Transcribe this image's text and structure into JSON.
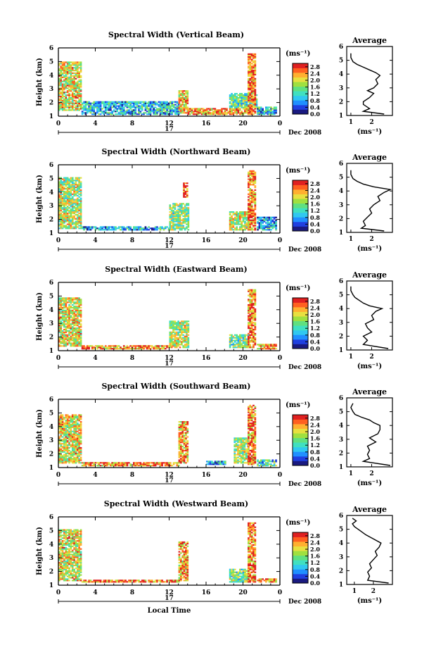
{
  "chart_data": [
    {
      "type": "heatmap",
      "title": "Spectral Width (Vertical Beam)",
      "ylabel": "Height (km)",
      "x_ticks": [
        "0",
        "4",
        "8",
        "12",
        "16",
        "20",
        "0"
      ],
      "y_ticks": [
        "1",
        "2",
        "3",
        "4",
        "5",
        "6"
      ],
      "date_day": "17",
      "date_label": "Dec 2008",
      "colorbar_unit": "(ms⁻¹)",
      "colorbar_ticks": [
        "0.0",
        "0.4",
        "0.8",
        "1.2",
        "1.6",
        "2.0",
        "2.4",
        "2.8"
      ],
      "colorbar_range": [
        0.0,
        3.0
      ],
      "xlim": [
        0,
        24
      ],
      "ylim": [
        1,
        6
      ],
      "echo_regions": [
        {
          "t0": 0.0,
          "t1": 2.5,
          "h0": 1.4,
          "h1": 4.9,
          "level": 2.0
        },
        {
          "t0": 2.5,
          "t1": 13.0,
          "h0": 1.1,
          "h1": 2.1,
          "level": 1.0
        },
        {
          "t0": 13.0,
          "t1": 14.0,
          "h0": 1.2,
          "h1": 2.9,
          "level": 2.2
        },
        {
          "t0": 14.0,
          "t1": 21.0,
          "h0": 1.1,
          "h1": 1.6,
          "level": 2.4
        },
        {
          "t0": 18.5,
          "t1": 21.5,
          "h0": 1.6,
          "h1": 2.7,
          "level": 1.4
        },
        {
          "t0": 20.5,
          "t1": 21.4,
          "h0": 1.1,
          "h1": 5.5,
          "level": 2.6
        },
        {
          "t0": 21.5,
          "t1": 23.5,
          "h0": 1.1,
          "h1": 1.7,
          "level": 1.0
        }
      ],
      "average": {
        "title": "Average",
        "xlabel": "(ms⁻¹)",
        "x_ticks": [
          "1",
          "2"
        ],
        "xlim": [
          0.8,
          3.0
        ],
        "y_ticks": [
          "1",
          "2",
          "3",
          "4",
          "5",
          "6"
        ],
        "ylim": [
          1,
          6
        ],
        "height": [
          1.1,
          1.3,
          1.5,
          1.8,
          2.0,
          2.3,
          2.6,
          2.8,
          3.0,
          3.3,
          3.6,
          3.9,
          4.1,
          4.3,
          4.5,
          4.7,
          4.9,
          5.2,
          5.5
        ],
        "width": [
          2.6,
          1.6,
          1.9,
          1.6,
          1.6,
          1.9,
          2.1,
          1.8,
          2.1,
          2.3,
          2.2,
          2.4,
          2.2,
          1.9,
          1.6,
          1.3,
          1.1,
          1.0,
          1.0
        ]
      }
    },
    {
      "type": "heatmap",
      "title": "Spectral Width (Northward Beam)",
      "ylabel": "Height (km)",
      "x_ticks": [
        "0",
        "4",
        "8",
        "12",
        "16",
        "20",
        "0"
      ],
      "y_ticks": [
        "1",
        "2",
        "3",
        "4",
        "5",
        "6"
      ],
      "date_day": "17",
      "date_label": "Dec 2008",
      "colorbar_unit": "(ms⁻¹)",
      "colorbar_ticks": [
        "0.0",
        "0.4",
        "0.8",
        "1.2",
        "1.6",
        "2.0",
        "2.4",
        "2.8"
      ],
      "colorbar_range": [
        0.0,
        3.0
      ],
      "xlim": [
        0,
        24
      ],
      "ylim": [
        1,
        6
      ],
      "echo_regions": [
        {
          "t0": 0.0,
          "t1": 2.5,
          "h0": 1.3,
          "h1": 5.0,
          "level": 1.8
        },
        {
          "t0": 2.5,
          "t1": 12.0,
          "h0": 1.2,
          "h1": 1.5,
          "level": 0.9
        },
        {
          "t0": 12.0,
          "t1": 14.0,
          "h0": 1.2,
          "h1": 3.2,
          "level": 1.6
        },
        {
          "t0": 13.5,
          "t1": 14.0,
          "h0": 3.6,
          "h1": 4.6,
          "level": 2.8
        },
        {
          "t0": 18.5,
          "t1": 20.5,
          "h0": 1.2,
          "h1": 2.6,
          "level": 1.8
        },
        {
          "t0": 20.5,
          "t1": 21.4,
          "h0": 1.2,
          "h1": 5.5,
          "level": 2.5
        },
        {
          "t0": 21.5,
          "t1": 23.5,
          "h0": 1.2,
          "h1": 2.2,
          "level": 0.9
        }
      ],
      "average": {
        "title": "Average",
        "xlabel": "(ms⁻¹)",
        "x_ticks": [
          "1",
          "2"
        ],
        "xlim": [
          0.8,
          3.0
        ],
        "y_ticks": [
          "1",
          "2",
          "3",
          "4",
          "5",
          "6"
        ],
        "ylim": [
          1,
          6
        ],
        "height": [
          1.1,
          1.3,
          1.5,
          1.8,
          2.1,
          2.4,
          2.7,
          3.0,
          3.3,
          3.6,
          3.9,
          4.1,
          4.3,
          4.5,
          4.7,
          4.9,
          5.2,
          5.5
        ],
        "width": [
          2.6,
          1.5,
          1.7,
          1.6,
          1.8,
          2.0,
          1.9,
          2.1,
          2.4,
          2.3,
          2.6,
          2.9,
          2.1,
          1.6,
          1.3,
          1.1,
          1.0,
          1.0
        ]
      }
    },
    {
      "type": "heatmap",
      "title": "Spectral Width (Eastward Beam)",
      "ylabel": "Height (km)",
      "x_ticks": [
        "0",
        "4",
        "8",
        "12",
        "16",
        "20",
        "0"
      ],
      "y_ticks": [
        "1",
        "2",
        "3",
        "4",
        "5",
        "6"
      ],
      "date_day": "17",
      "date_label": "Dec 2008",
      "colorbar_unit": "(ms⁻¹)",
      "colorbar_ticks": [
        "0.0",
        "0.4",
        "0.8",
        "1.2",
        "1.6",
        "2.0",
        "2.4",
        "2.8"
      ],
      "colorbar_range": [
        0.0,
        3.0
      ],
      "xlim": [
        0,
        24
      ],
      "ylim": [
        1,
        6
      ],
      "echo_regions": [
        {
          "t0": 0.0,
          "t1": 2.5,
          "h0": 1.3,
          "h1": 4.8,
          "level": 2.0
        },
        {
          "t0": 2.5,
          "t1": 12.0,
          "h0": 1.1,
          "h1": 1.4,
          "level": 2.4
        },
        {
          "t0": 12.0,
          "t1": 14.0,
          "h0": 1.2,
          "h1": 3.2,
          "level": 1.8
        },
        {
          "t0": 18.5,
          "t1": 20.5,
          "h0": 1.2,
          "h1": 2.2,
          "level": 1.5
        },
        {
          "t0": 20.5,
          "t1": 21.4,
          "h0": 1.2,
          "h1": 5.4,
          "level": 2.5
        },
        {
          "t0": 21.5,
          "t1": 23.5,
          "h0": 1.1,
          "h1": 1.5,
          "level": 2.2
        }
      ],
      "average": {
        "title": "Average",
        "xlabel": "(ms⁻¹)",
        "x_ticks": [
          "1",
          "2"
        ],
        "xlim": [
          0.8,
          3.0
        ],
        "y_ticks": [
          "1",
          "2",
          "3",
          "4",
          "5",
          "6"
        ],
        "ylim": [
          1,
          6
        ],
        "height": [
          1.1,
          1.4,
          1.7,
          2.0,
          2.3,
          2.6,
          2.9,
          3.2,
          3.5,
          3.8,
          4.0,
          4.2,
          4.4,
          4.6,
          4.8,
          5.0,
          5.3,
          5.6
        ],
        "width": [
          2.8,
          1.6,
          1.8,
          1.6,
          2.0,
          1.8,
          1.7,
          2.1,
          2.0,
          2.2,
          2.5,
          1.9,
          1.6,
          1.4,
          1.2,
          1.1,
          1.0,
          1.0
        ]
      }
    },
    {
      "type": "heatmap",
      "title": "Spectral Width (Southward Beam)",
      "ylabel": "Height (km)",
      "x_ticks": [
        "0",
        "4",
        "8",
        "12",
        "16",
        "20",
        "0"
      ],
      "y_ticks": [
        "1",
        "2",
        "3",
        "4",
        "5",
        "6"
      ],
      "date_day": "17",
      "date_label": "Dec 2008",
      "colorbar_unit": "(ms⁻¹)",
      "colorbar_ticks": [
        "0.0",
        "0.4",
        "0.8",
        "1.2",
        "1.6",
        "2.0",
        "2.4",
        "2.8"
      ],
      "colorbar_range": [
        0.0,
        3.0
      ],
      "xlim": [
        0,
        24
      ],
      "ylim": [
        1,
        6
      ],
      "echo_regions": [
        {
          "t0": 0.0,
          "t1": 2.5,
          "h0": 1.3,
          "h1": 4.8,
          "level": 2.0
        },
        {
          "t0": 2.5,
          "t1": 13.0,
          "h0": 1.1,
          "h1": 1.4,
          "level": 2.4
        },
        {
          "t0": 13.0,
          "t1": 14.0,
          "h0": 1.3,
          "h1": 4.4,
          "level": 2.3
        },
        {
          "t0": 16.0,
          "t1": 18.0,
          "h0": 1.2,
          "h1": 1.5,
          "level": 0.9
        },
        {
          "t0": 19.0,
          "t1": 20.5,
          "h0": 1.3,
          "h1": 3.2,
          "level": 1.7
        },
        {
          "t0": 20.5,
          "t1": 21.4,
          "h0": 1.2,
          "h1": 5.5,
          "level": 2.5
        },
        {
          "t0": 21.5,
          "t1": 23.5,
          "h0": 1.1,
          "h1": 1.6,
          "level": 1.2
        }
      ],
      "average": {
        "title": "Average",
        "xlabel": "(ms⁻¹)",
        "x_ticks": [
          "1",
          "2"
        ],
        "xlim": [
          0.8,
          3.0
        ],
        "y_ticks": [
          "1",
          "2",
          "3",
          "4",
          "5",
          "6"
        ],
        "ylim": [
          1,
          6
        ],
        "height": [
          1.1,
          1.4,
          1.6,
          1.9,
          2.2,
          2.5,
          2.8,
          3.1,
          3.4,
          3.7,
          4.0,
          4.2,
          4.4,
          4.6,
          4.8,
          5.0,
          5.3,
          5.6
        ],
        "width": [
          2.9,
          1.6,
          1.9,
          1.8,
          1.9,
          1.8,
          2.2,
          1.9,
          2.3,
          2.4,
          2.4,
          2.1,
          1.9,
          1.5,
          1.2,
          1.1,
          1.0,
          1.1
        ]
      }
    },
    {
      "type": "heatmap",
      "title": "Spectral Width (Westward Beam)",
      "ylabel": "Height (km)",
      "x_ticks": [
        "0",
        "4",
        "8",
        "12",
        "16",
        "20",
        "0"
      ],
      "y_ticks": [
        "1",
        "2",
        "3",
        "4",
        "5",
        "6"
      ],
      "date_day": "17",
      "date_label": "Dec 2008",
      "xlabel": "Local Time",
      "colorbar_unit": "(ms⁻¹)",
      "colorbar_ticks": [
        "0.0",
        "0.4",
        "0.8",
        "1.2",
        "1.6",
        "2.0",
        "2.4",
        "2.8"
      ],
      "colorbar_range": [
        0.0,
        3.0
      ],
      "xlim": [
        0,
        24
      ],
      "ylim": [
        1,
        6
      ],
      "echo_regions": [
        {
          "t0": 0.0,
          "t1": 2.5,
          "h0": 1.3,
          "h1": 5.0,
          "level": 2.0
        },
        {
          "t0": 2.5,
          "t1": 13.0,
          "h0": 1.2,
          "h1": 1.4,
          "level": 2.5
        },
        {
          "t0": 13.0,
          "t1": 14.0,
          "h0": 1.3,
          "h1": 4.2,
          "level": 2.3
        },
        {
          "t0": 18.5,
          "t1": 20.5,
          "h0": 1.2,
          "h1": 2.2,
          "level": 1.5
        },
        {
          "t0": 20.5,
          "t1": 21.4,
          "h0": 1.2,
          "h1": 5.5,
          "level": 2.5
        },
        {
          "t0": 21.5,
          "t1": 23.5,
          "h0": 1.2,
          "h1": 1.5,
          "level": 2.4
        }
      ],
      "average": {
        "title": "Average",
        "xlabel": "(ms⁻¹)",
        "x_ticks": [
          "1",
          "2"
        ],
        "xlim": [
          0.6,
          3.0
        ],
        "y_ticks": [
          "1",
          "2",
          "3",
          "4",
          "5",
          "6"
        ],
        "ylim": [
          1,
          6
        ],
        "height": [
          1.1,
          1.3,
          1.6,
          1.9,
          2.2,
          2.5,
          2.8,
          3.1,
          3.4,
          3.7,
          4.0,
          4.3,
          4.6,
          4.9,
          5.2,
          5.4,
          5.6,
          5.8
        ],
        "width": [
          2.8,
          1.7,
          1.8,
          1.7,
          1.9,
          1.8,
          2.0,
          2.2,
          2.1,
          2.3,
          2.4,
          2.0,
          1.6,
          1.3,
          1.0,
          0.9,
          1.1,
          0.9
        ]
      }
    }
  ],
  "colors": {
    "colorscale": [
      "#1a1a80",
      "#2040e0",
      "#2090ff",
      "#30c8f0",
      "#40e0c0",
      "#60e080",
      "#a0e040",
      "#e8e040",
      "#ffb030",
      "#ff6020",
      "#e02020"
    ],
    "axis": "#000000",
    "background": "#ffffff"
  }
}
